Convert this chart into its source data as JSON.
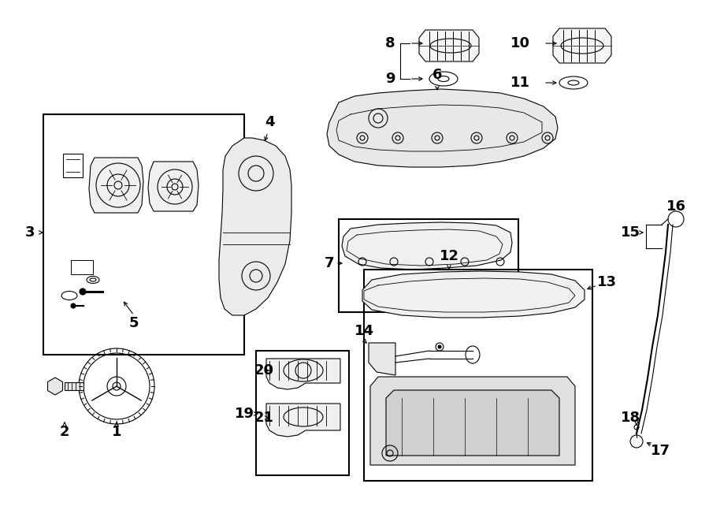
{
  "bg_color": "#ffffff",
  "line_color": "#000000",
  "figsize": [
    9.0,
    6.61
  ],
  "dpi": 100,
  "lw": 0.8
}
